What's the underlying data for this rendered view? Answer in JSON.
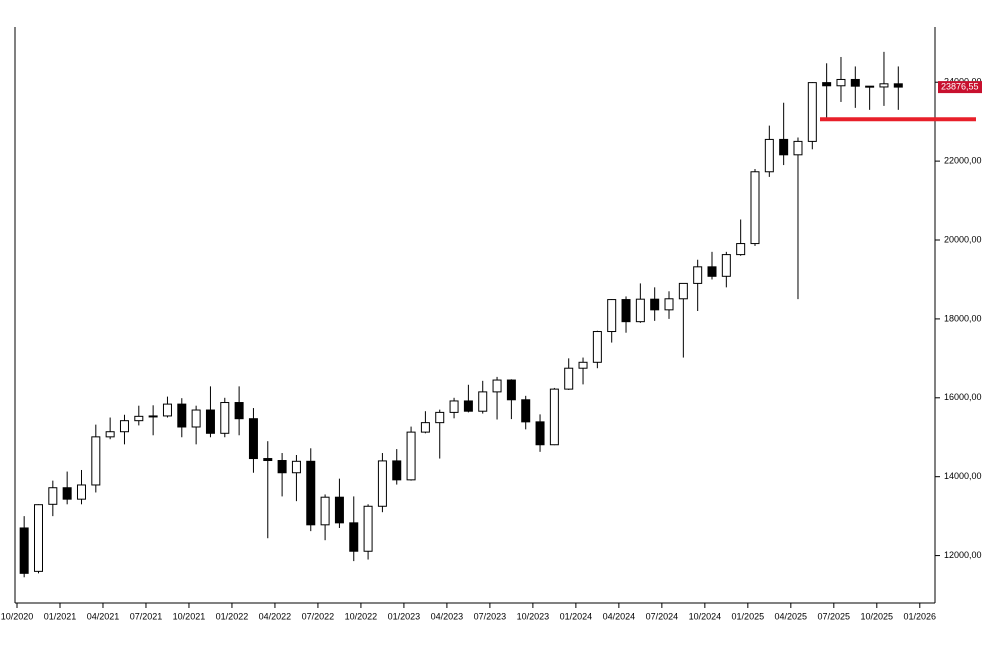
{
  "chart_data": {
    "type": "candlestick",
    "categories": [
      "10/2020",
      null,
      null,
      "01/2021",
      null,
      null,
      "04/2021",
      null,
      null,
      "07/2021",
      null,
      null,
      "10/2021",
      null,
      null,
      "01/2022",
      null,
      null,
      "04/2022",
      null,
      null,
      "07/2022",
      null,
      null,
      "10/2022",
      null,
      null,
      "01/2023",
      null,
      null,
      "04/2023",
      null,
      null,
      "07/2023",
      null,
      null,
      "10/2023",
      null,
      null,
      "01/2024",
      null,
      null,
      "04/2024",
      null,
      null,
      "07/2024",
      null,
      null,
      "10/2024",
      null,
      null,
      "01/2025",
      null,
      null,
      "04/2025",
      null,
      null,
      "07/2025",
      null,
      null,
      "10/2025",
      null,
      null,
      "01/2026"
    ],
    "open": [
      12700,
      11600,
      13300,
      13720,
      13430,
      13790,
      15010,
      15140,
      15420,
      15530,
      15540,
      15840,
      15260,
      15690,
      15100,
      15880,
      15470,
      14460,
      14410,
      14100,
      14390,
      12780,
      13480,
      12830,
      12110,
      13250,
      14400,
      13920,
      15130,
      15370,
      15630,
      15920,
      15660,
      16150,
      16450,
      15950,
      15390,
      14810,
      16220,
      16750,
      16900,
      17680,
      18490,
      17930,
      18500,
      18230,
      18510,
      18900,
      19320,
      19080,
      19630,
      19910,
      21730,
      22550,
      22160,
      22500,
      23990,
      23910,
      24070,
      23900,
      23880,
      23960,
      null,
      null
    ],
    "high": [
      13000,
      13300,
      13900,
      14130,
      14170,
      15320,
      15500,
      15570,
      15800,
      15810,
      16030,
      15990,
      15800,
      16290,
      16000,
      16290,
      15740,
      14900,
      14600,
      14550,
      14720,
      13550,
      13950,
      13500,
      13300,
      14600,
      14700,
      15270,
      15660,
      15700,
      16000,
      16330,
      16430,
      16530,
      16470,
      16050,
      15580,
      16250,
      17000,
      17020,
      17700,
      18500,
      18570,
      18900,
      18800,
      18700,
      18900,
      19500,
      19700,
      19700,
      20520,
      21800,
      22900,
      23480,
      22600,
      24000,
      24480,
      24640,
      24400,
      23900,
      24770,
      24400,
      null,
      null
    ],
    "low": [
      11450,
      11550,
      13000,
      13300,
      13300,
      13600,
      14950,
      14820,
      15300,
      15050,
      15500,
      15000,
      14820,
      15000,
      15000,
      15050,
      14100,
      12440,
      13500,
      13380,
      12620,
      12390,
      12700,
      11860,
      11900,
      13100,
      13800,
      13900,
      15100,
      14460,
      15480,
      15630,
      15600,
      15450,
      15460,
      15200,
      14630,
      14800,
      16200,
      16340,
      16750,
      17400,
      17650,
      17900,
      17950,
      18000,
      17020,
      18200,
      19000,
      18800,
      19600,
      19850,
      21600,
      21900,
      18500,
      22300,
      23050,
      23500,
      23350,
      23300,
      23400,
      23300,
      null,
      null
    ],
    "close": [
      11550,
      13290,
      13720,
      13430,
      13790,
      15010,
      15140,
      15420,
      15530,
      15540,
      15840,
      15260,
      15690,
      15100,
      15880,
      15470,
      14460,
      14410,
      14100,
      14390,
      12780,
      13480,
      12830,
      12110,
      13250,
      14400,
      13920,
      15130,
      15370,
      15630,
      15920,
      15660,
      16150,
      16450,
      15950,
      15390,
      14810,
      16220,
      16750,
      16900,
      17680,
      18490,
      17930,
      18500,
      18230,
      18510,
      18900,
      19320,
      19080,
      19630,
      19910,
      21730,
      22550,
      22160,
      22500,
      23990,
      23910,
      24070,
      23900,
      23880,
      23960,
      23876.55,
      null,
      null
    ],
    "up_color": "#ffffff",
    "down_color": "#000000",
    "ylim": [
      10950,
      25400
    ],
    "yticks": [
      {
        "value": 12000,
        "label": "12000,00"
      },
      {
        "value": 14000,
        "label": "14000,00"
      },
      {
        "value": 16000,
        "label": "16000,00"
      },
      {
        "value": 18000,
        "label": "18000,00"
      },
      {
        "value": 20000,
        "label": "20000,00"
      },
      {
        "value": 22000,
        "label": "22000,00"
      },
      {
        "value": 24000,
        "label": "24000,00"
      }
    ],
    "last_price": {
      "value": 23876.55,
      "label": "23876,55",
      "color": "#c8102e"
    },
    "level_line": {
      "value": 23060,
      "color": "#e8202a"
    }
  }
}
